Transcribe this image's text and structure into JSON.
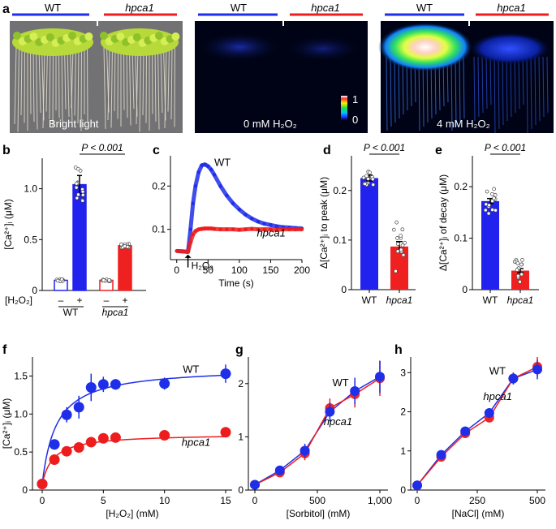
{
  "panel_letters": {
    "a": "a",
    "b": "b",
    "c": "c",
    "d": "d",
    "e": "e",
    "f": "f",
    "g": "g",
    "h": "h"
  },
  "photos": [
    {
      "label_wt": "WT",
      "label_mut": "hpca1",
      "caption": "Bright light"
    },
    {
      "label_wt": "WT",
      "label_mut": "hpca1",
      "caption": "0 mM H₂O₂",
      "scale_top": "1",
      "scale_bottom": "0"
    },
    {
      "label_wt": "WT",
      "label_mut": "hpca1",
      "caption": "4 mM H₂O₂"
    }
  ],
  "colors": {
    "wt": "#1f2ee8",
    "mut": "#ee1d1d",
    "wt_bar": "#2222ee",
    "mut_bar": "#ee2020"
  },
  "chart_data": [
    {
      "panel": "b",
      "type": "bar",
      "ylabel": "[Ca²⁺]ᵢ (μM)",
      "ylim": [
        0,
        1.3
      ],
      "yticks": [
        "0",
        "0.5",
        "1.0"
      ],
      "ytick_values": [
        0,
        0.5,
        1.0
      ],
      "xtick_signs": [
        "–",
        "+",
        "–",
        "+"
      ],
      "x_prefix": "[H₂O₂]",
      "groups": [
        "WT",
        "hpca1"
      ],
      "bars": [
        {
          "group": "WT",
          "h2o2": "-",
          "value": 0.1,
          "err": 0.01,
          "filled": false
        },
        {
          "group": "WT",
          "h2o2": "+",
          "value": 1.04,
          "err": 0.09,
          "filled": true
        },
        {
          "group": "hpca1",
          "h2o2": "-",
          "value": 0.1,
          "err": 0.01,
          "filled": false
        },
        {
          "group": "hpca1",
          "h2o2": "+",
          "value": 0.44,
          "err": 0.01,
          "filled": true
        }
      ],
      "annotation": "P < 0.001"
    },
    {
      "panel": "c",
      "type": "line",
      "xlabel": "Time (s)",
      "xlim": [
        -10,
        200
      ],
      "ylim": [
        0.03,
        0.27
      ],
      "xticks": [
        "0",
        "50",
        "100",
        "150",
        "200"
      ],
      "xtick_values": [
        0,
        50,
        100,
        150,
        200
      ],
      "yticks": [
        "0.1",
        "0.2"
      ],
      "ytick_values": [
        0.1,
        0.2
      ],
      "arrow_label": "H₂O₂",
      "arrow_x": 18,
      "series": [
        {
          "name": "WT",
          "x": [
            0,
            10,
            18,
            22,
            26,
            30,
            35,
            40,
            45,
            50,
            55,
            60,
            70,
            80,
            90,
            100,
            110,
            120,
            130,
            140,
            150,
            160,
            170,
            180,
            190,
            200
          ],
          "y": [
            0.05,
            0.049,
            0.048,
            0.1,
            0.16,
            0.2,
            0.232,
            0.248,
            0.25,
            0.246,
            0.238,
            0.226,
            0.2,
            0.178,
            0.16,
            0.146,
            0.134,
            0.125,
            0.118,
            0.113,
            0.11,
            0.107,
            0.105,
            0.104,
            0.103,
            0.102
          ]
        },
        {
          "name": "hpca1",
          "x": [
            0,
            10,
            18,
            22,
            26,
            30,
            35,
            40,
            45,
            50,
            55,
            60,
            70,
            80,
            90,
            100,
            110,
            120,
            130,
            140,
            150,
            160,
            170,
            180,
            190,
            200
          ],
          "y": [
            0.05,
            0.049,
            0.048,
            0.07,
            0.088,
            0.096,
            0.1,
            0.101,
            0.102,
            0.102,
            0.102,
            0.101,
            0.1,
            0.1,
            0.1,
            0.099,
            0.1,
            0.101,
            0.1,
            0.1,
            0.1,
            0.099,
            0.1,
            0.1,
            0.1,
            0.1
          ]
        }
      ]
    },
    {
      "panel": "d",
      "type": "bar",
      "ylabel": "Δ[Ca²⁺]ᵢ to peak (μM)",
      "ylim": [
        0,
        0.27
      ],
      "yticks": [
        "0",
        "0.1",
        "0.2"
      ],
      "ytick_values": [
        0,
        0.1,
        0.2
      ],
      "categories": [
        "WT",
        "hpca1"
      ],
      "values": [
        0.225,
        0.087
      ],
      "errors": [
        0.006,
        0.01
      ],
      "annotation": "P < 0.001"
    },
    {
      "panel": "e",
      "type": "bar",
      "ylabel": "Δ[Ca²⁺]ᵢ of decay (μM)",
      "ylim": [
        0,
        0.26
      ],
      "yticks": [
        "0",
        "0.1",
        "0.2"
      ],
      "ytick_values": [
        0,
        0.1,
        0.2
      ],
      "categories": [
        "WT",
        "hpca1"
      ],
      "values": [
        0.172,
        0.037
      ],
      "errors": [
        0.005,
        0.004
      ],
      "annotation": "P < 0.001"
    },
    {
      "panel": "f",
      "type": "scatter",
      "xlabel": "[H₂O₂] (mM)",
      "ylabel": "[Ca²⁺]ᵢ (μM)",
      "xlim": [
        0,
        15
      ],
      "ylim": [
        0,
        1.75
      ],
      "xticks": [
        "0",
        "5",
        "10",
        "15"
      ],
      "xtick_values": [
        0,
        5,
        10,
        15
      ],
      "yticks": [
        "0",
        "0.5",
        "1.0",
        "1.5"
      ],
      "ytick_values": [
        0,
        0.5,
        1.0,
        1.5
      ],
      "series": [
        {
          "name": "WT",
          "x": [
            0,
            1,
            2,
            3,
            4,
            5,
            6,
            10,
            15
          ],
          "y": [
            0.08,
            0.6,
            0.99,
            1.09,
            1.35,
            1.39,
            1.39,
            1.4,
            1.53
          ],
          "err": [
            0.03,
            0.05,
            0.1,
            0.15,
            0.18,
            0.1,
            0.07,
            0.08,
            0.12
          ]
        },
        {
          "name": "hpca1",
          "x": [
            0,
            1,
            2,
            3,
            4,
            5,
            6,
            10,
            15
          ],
          "y": [
            0.08,
            0.4,
            0.51,
            0.56,
            0.63,
            0.68,
            0.69,
            0.72,
            0.76
          ],
          "err": [
            0.03,
            0.04,
            0.05,
            0.05,
            0.05,
            0.05,
            0.05,
            0.04,
            0.05
          ]
        }
      ],
      "fits": [
        {
          "name": "WT",
          "vmax": 1.62,
          "k": 1.15,
          "base": 0.08
        },
        {
          "name": "hpca1",
          "vmax": 0.74,
          "k": 0.9,
          "base": 0.08
        }
      ]
    },
    {
      "panel": "g",
      "type": "line",
      "xlabel": "[Sorbitol] (mM)",
      "xlim": [
        0,
        1000
      ],
      "ylim": [
        0,
        2.5
      ],
      "xticks": [
        "0",
        "500",
        "1,000"
      ],
      "xtick_values": [
        0,
        500,
        1000
      ],
      "yticks": [
        "0",
        "1",
        "2"
      ],
      "ytick_values": [
        0,
        1,
        2
      ],
      "series": [
        {
          "name": "WT",
          "x": [
            0,
            200,
            400,
            600,
            800,
            1000
          ],
          "y": [
            0.1,
            0.37,
            0.74,
            1.47,
            1.86,
            2.13
          ],
          "err": [
            0.05,
            0.07,
            0.13,
            0.18,
            0.25,
            0.3
          ]
        },
        {
          "name": "hpca1",
          "x": [
            0,
            200,
            400,
            600,
            800,
            1000
          ],
          "y": [
            0.1,
            0.33,
            0.69,
            1.54,
            1.8,
            2.1
          ],
          "err": [
            0.05,
            0.07,
            0.13,
            0.18,
            0.25,
            0.33
          ]
        }
      ]
    },
    {
      "panel": "h",
      "type": "line",
      "xlabel": "[NaCl] (mM)",
      "xlim": [
        0,
        500
      ],
      "ylim": [
        0,
        3.4
      ],
      "xticks": [
        "0",
        "250",
        "500"
      ],
      "xtick_values": [
        0,
        250,
        500
      ],
      "yticks": [
        "0",
        "1",
        "2",
        "3"
      ],
      "ytick_values": [
        0,
        1,
        2,
        3
      ],
      "series": [
        {
          "name": "WT",
          "x": [
            0,
            100,
            200,
            300,
            400,
            500
          ],
          "y": [
            0.12,
            0.9,
            1.5,
            1.97,
            2.85,
            3.08
          ],
          "err": [
            0.05,
            0.1,
            0.1,
            0.12,
            0.15,
            0.25
          ]
        },
        {
          "name": "hpca1",
          "x": [
            0,
            100,
            200,
            300,
            400,
            500
          ],
          "y": [
            0.12,
            0.85,
            1.45,
            1.85,
            2.85,
            3.15
          ],
          "err": [
            0.05,
            0.1,
            0.1,
            0.12,
            0.15,
            0.25
          ]
        }
      ]
    }
  ]
}
